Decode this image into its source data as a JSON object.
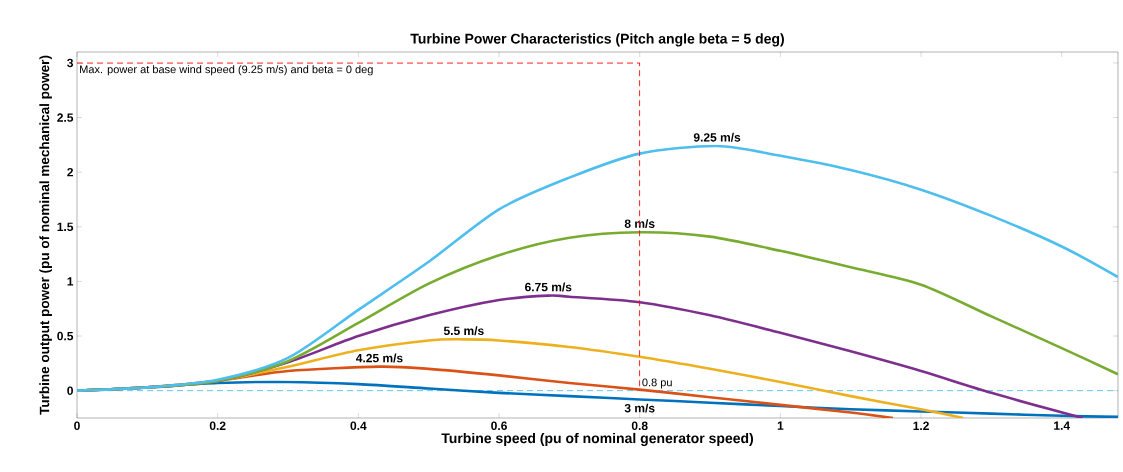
{
  "chart_data": {
    "type": "line",
    "title": "Turbine Power Characteristics (Pitch angle beta = 5 deg)",
    "xlabel": "Turbine speed (pu of nominal generator speed)",
    "ylabel": "Turbine output power (pu of nominal mechanical power)",
    "xlim": [
      0,
      1.48
    ],
    "ylim": [
      -0.25,
      3.1
    ],
    "xticks": [
      0,
      0.2,
      0.4,
      0.6,
      0.8,
      1,
      1.2,
      1.4
    ],
    "yticks": [
      0,
      0.5,
      1,
      1.5,
      2,
      2.5,
      3
    ],
    "grid": false,
    "marker": "none",
    "line_style": "solid",
    "ref_lines": [
      {
        "axis": "y",
        "value": 0,
        "color": "#4dbeee",
        "line_style": "dashed"
      }
    ],
    "annotations": [
      {
        "text": "Max. power at base wind speed (9.25 m/s) and beta = 0 deg",
        "x": 0,
        "y": 3
      },
      {
        "text": "0.8 pu",
        "x": 0.8,
        "y": 0
      }
    ],
    "series": [
      {
        "name": "3 m/s",
        "color": "#0072bd",
        "x": [
          0,
          0.1,
          0.2,
          0.3,
          0.4,
          0.5,
          0.6,
          0.7,
          0.8,
          0.9,
          1.0,
          1.1,
          1.2,
          1.3,
          1.4,
          1.48
        ],
        "values": [
          0,
          0.03,
          0.07,
          0.08,
          0.06,
          0.02,
          -0.02,
          -0.05,
          -0.08,
          -0.11,
          -0.14,
          -0.17,
          -0.19,
          -0.21,
          -0.23,
          -0.24
        ]
      },
      {
        "name": "4.25 m/s",
        "color": "#d95319",
        "x": [
          0,
          0.1,
          0.2,
          0.3,
          0.43,
          0.5,
          0.6,
          0.7,
          0.8,
          0.9,
          1.0,
          1.1,
          1.16
        ],
        "values": [
          0,
          0.03,
          0.09,
          0.18,
          0.22,
          0.2,
          0.14,
          0.07,
          0.01,
          -0.06,
          -0.13,
          -0.2,
          -0.25
        ]
      },
      {
        "name": "5.5 m/s",
        "color": "#edb120",
        "x": [
          0,
          0.1,
          0.2,
          0.3,
          0.4,
          0.5,
          0.55,
          0.6,
          0.7,
          0.8,
          0.9,
          1.0,
          1.1,
          1.2,
          1.26
        ],
        "values": [
          0,
          0.03,
          0.09,
          0.22,
          0.37,
          0.46,
          0.47,
          0.46,
          0.4,
          0.31,
          0.2,
          0.08,
          -0.05,
          -0.17,
          -0.25
        ]
      },
      {
        "name": "6.75 m/s",
        "color": "#7e2f8e",
        "x": [
          0,
          0.1,
          0.2,
          0.3,
          0.4,
          0.5,
          0.6,
          0.67,
          0.7,
          0.8,
          0.9,
          1.0,
          1.1,
          1.2,
          1.3,
          1.43
        ],
        "values": [
          0,
          0.03,
          0.09,
          0.26,
          0.5,
          0.69,
          0.83,
          0.87,
          0.86,
          0.81,
          0.69,
          0.53,
          0.36,
          0.18,
          -0.02,
          -0.25
        ]
      },
      {
        "name": "8 m/s",
        "color": "#77ac30",
        "x": [
          0,
          0.1,
          0.2,
          0.3,
          0.4,
          0.5,
          0.6,
          0.7,
          0.8,
          0.9,
          1.0,
          1.1,
          1.2,
          1.3,
          1.4,
          1.48
        ],
        "values": [
          0,
          0.03,
          0.09,
          0.27,
          0.62,
          0.98,
          1.24,
          1.4,
          1.45,
          1.41,
          1.28,
          1.13,
          0.97,
          0.68,
          0.39,
          0.15
        ]
      },
      {
        "name": "9.25 m/s",
        "color": "#4dbeee",
        "x": [
          0,
          0.1,
          0.2,
          0.3,
          0.4,
          0.5,
          0.6,
          0.7,
          0.8,
          0.91,
          1.0,
          1.1,
          1.2,
          1.3,
          1.4,
          1.48
        ],
        "values": [
          0,
          0.03,
          0.1,
          0.3,
          0.74,
          1.18,
          1.66,
          1.95,
          2.17,
          2.24,
          2.15,
          2.02,
          1.84,
          1.6,
          1.32,
          1.04
        ]
      },
      {
        "color": "#ff0000",
        "line_style": "dashed",
        "x": [
          0,
          0.8,
          0.8
        ],
        "values": [
          3,
          3,
          0
        ]
      }
    ]
  }
}
